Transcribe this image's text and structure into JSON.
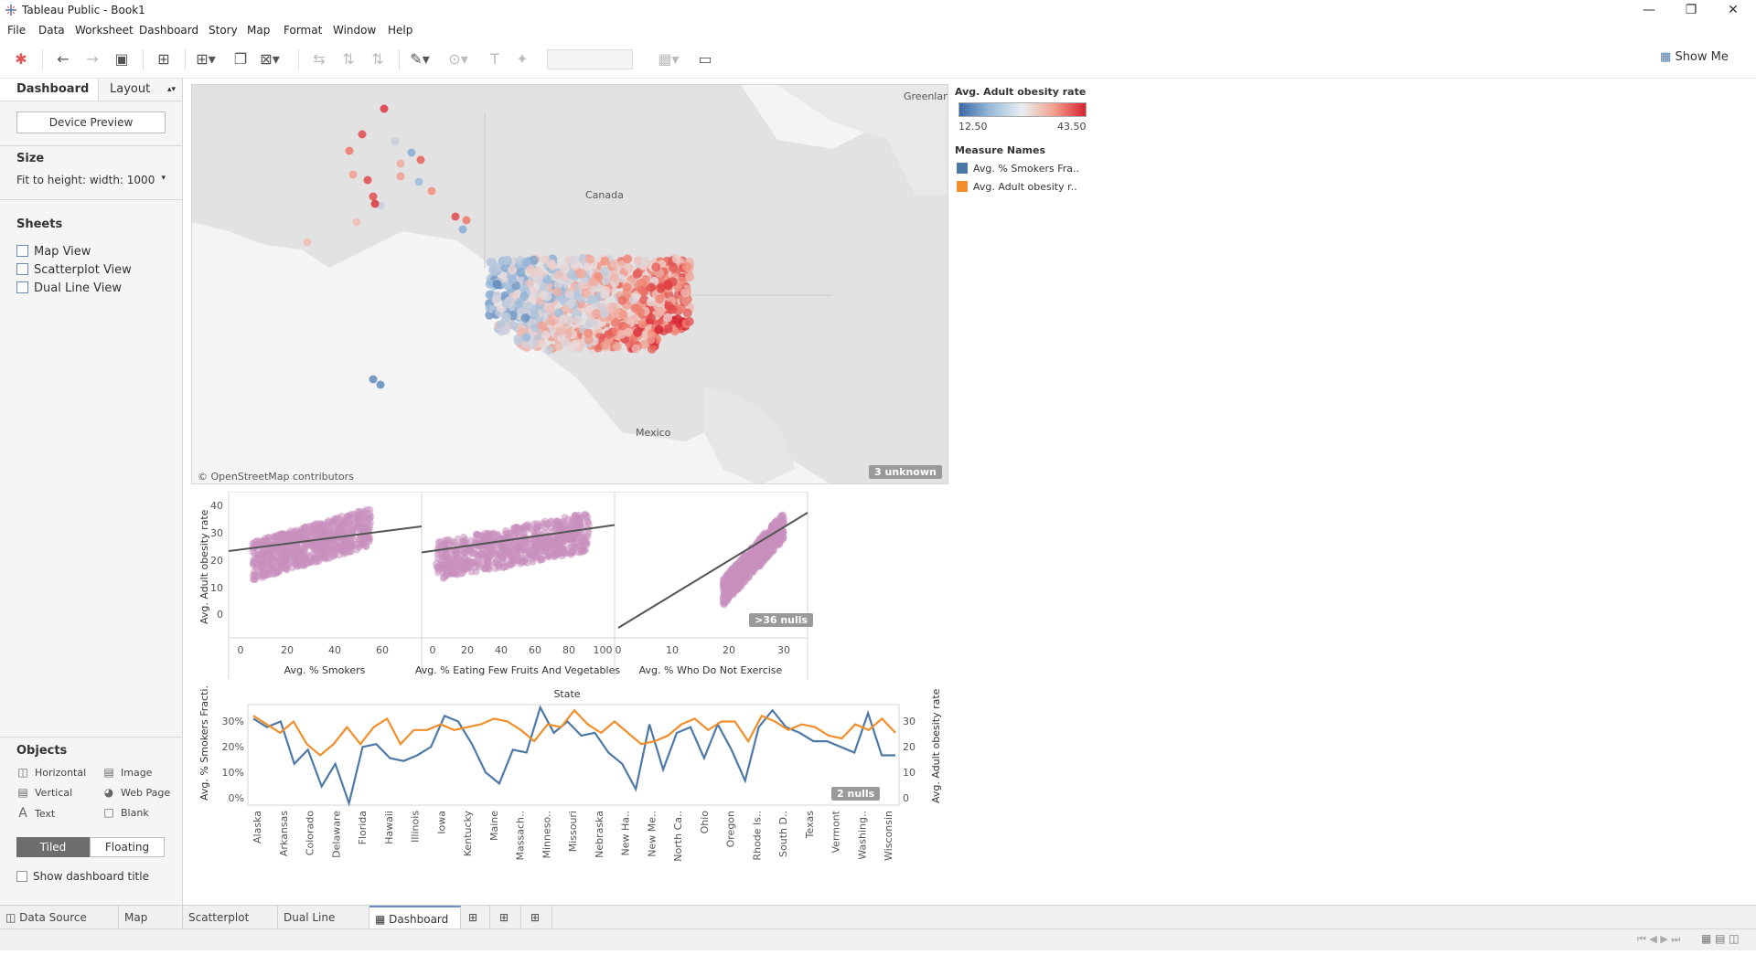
{
  "window": {
    "title": "Tableau Public - Book1"
  },
  "menu": [
    "File",
    "Data",
    "Worksheet",
    "Dashboard",
    "Story",
    "Map",
    "Format",
    "Window",
    "Help"
  ],
  "toolbar": {
    "show_me": "Show Me"
  },
  "left_panel": {
    "tabs": {
      "dashboard": "Dashboard",
      "layout": "Layout"
    },
    "device_preview": "Device Preview",
    "size_heading": "Size",
    "size_value": "Fit to height: width: 1000",
    "sheets_heading": "Sheets",
    "sheets": [
      "Map View",
      "Scatterplot View",
      "Dual Line View"
    ],
    "objects_heading": "Objects",
    "objects": [
      {
        "label": "Horizontal",
        "icon": "horizontal-icon"
      },
      {
        "label": "Image",
        "icon": "image-icon"
      },
      {
        "label": "Vertical",
        "icon": "vertical-icon"
      },
      {
        "label": "Web Page",
        "icon": "globe-icon"
      },
      {
        "label": "Text",
        "icon": "text-icon"
      },
      {
        "label": "Blank",
        "icon": "blank-icon"
      }
    ],
    "tiled": "Tiled",
    "floating": "Floating",
    "show_title": "Show dashboard title"
  },
  "map": {
    "labels": {
      "greenland": "Greenlan",
      "canada": "Canada",
      "mexico": "Mexico"
    },
    "attribution": "© OpenStreetMap contributors",
    "unknown_badge": "3 unknown"
  },
  "legend": {
    "color_title": "Avg. Adult obesity rate",
    "min": "12.50",
    "max": "43.50",
    "colors": {
      "low": "#4a78b5",
      "mid": "#dbe6f0",
      "high": "#d6202f"
    },
    "measure_title": "Measure Names",
    "measures": [
      {
        "label": "Avg. % Smokers Fra..",
        "color": "#4e79a7"
      },
      {
        "label": "Avg. Adult obesity r..",
        "color": "#f28e2b"
      }
    ]
  },
  "scatter": {
    "y_title": "Avg. Adult obesity rate",
    "y_ticks": [
      "40",
      "30",
      "20",
      "10",
      "0"
    ],
    "panels": [
      {
        "title": "Avg. % Smokers",
        "ticks": [
          "0",
          "20",
          "40",
          "60"
        ]
      },
      {
        "title": "Avg. % Eating Few Fruits And Vegetables",
        "ticks": [
          "0",
          "20",
          "40",
          "60",
          "80",
          "100"
        ]
      },
      {
        "title": "Avg. % Who Do Not Exercise",
        "ticks": [
          "0",
          "10",
          "20",
          "30"
        ]
      }
    ],
    "nulls_badge": ">36 nulls",
    "point_color": "#c98fbd"
  },
  "dual_line": {
    "header": "State",
    "left_title": "Avg. % Smokers Fracti..",
    "right_title": "Avg. Adult obesity rate",
    "left_ticks": [
      "30%",
      "20%",
      "10%",
      "0%"
    ],
    "right_ticks": [
      "30",
      "20",
      "10",
      "0"
    ],
    "nulls_badge": "2 nulls",
    "x_labels": [
      "Alaska",
      "Arkansas",
      "Colorado",
      "Delaware",
      "Florida",
      "Hawaii",
      "Illinois",
      "Iowa",
      "Kentucky",
      "Maine",
      "Massach..",
      "Minneso..",
      "Missouri",
      "Nebraska",
      "New Ha..",
      "New Me..",
      "North Ca..",
      "Ohio",
      "Oregon",
      "Rhode Is..",
      "South D..",
      "Texas",
      "Vermont",
      "Washing..",
      "Wisconsin"
    ]
  },
  "chart_data": [
    {
      "type": "line",
      "title": "",
      "xlabel": "State",
      "series": [
        {
          "name": "Avg. % Smokers Fra..",
          "axis": "left",
          "unit": "%",
          "values": [
            30,
            27,
            29,
            14,
            19,
            6,
            14,
            0,
            20,
            21,
            16,
            15,
            17,
            20,
            31,
            29,
            21,
            11,
            7,
            19,
            18,
            34,
            25,
            29,
            24,
            25,
            18,
            14,
            5,
            28,
            12,
            25,
            27,
            16,
            28,
            19,
            8,
            27,
            33,
            27,
            25,
            22,
            22,
            20,
            18,
            32,
            17,
            17
          ]
        },
        {
          "name": "Avg. Adult obesity r..",
          "axis": "right",
          "values": [
            31,
            28,
            25,
            29,
            21,
            17,
            21,
            27,
            21,
            27,
            30,
            21,
            26,
            26,
            28,
            26,
            27,
            28,
            30,
            29,
            26,
            22,
            28,
            27,
            33,
            28,
            25,
            29,
            25,
            21,
            22,
            24,
            28,
            30,
            26,
            29,
            29,
            22,
            31,
            29,
            26,
            28,
            27,
            24,
            23,
            28,
            26,
            30,
            25
          ]
        }
      ],
      "ylim_left": [
        0,
        35
      ],
      "ylim_right": [
        0,
        35
      ]
    }
  ]
}
